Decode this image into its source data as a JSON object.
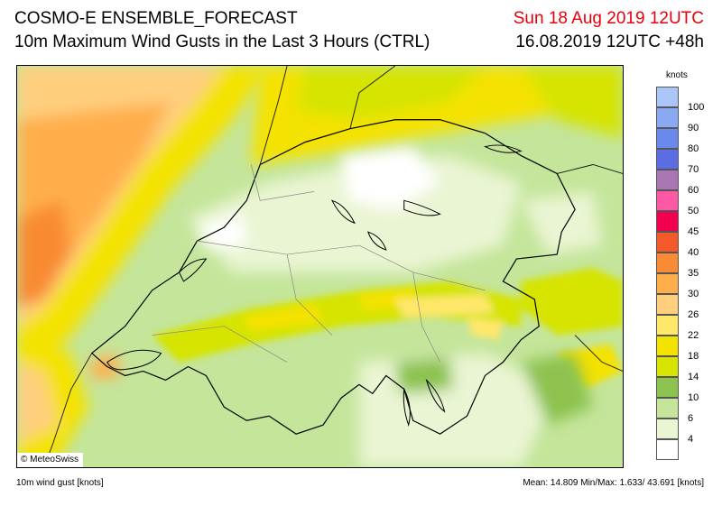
{
  "header": {
    "title_line1": "COSMO-E ENSEMBLE_FORECAST",
    "title_line2": "10m Maximum Wind Gusts in the Last 3 Hours (CTRL)",
    "valid_time": "Sun 18 Aug 2019 12UTC",
    "init_time": "16.08.2019 12UTC +48h"
  },
  "map": {
    "copyright": "© MeteoSwiss"
  },
  "legend": {
    "unit": "knots",
    "colors": [
      "#ffffff",
      "#eaf5d3",
      "#c4e59a",
      "#8cc24e",
      "#d6e400",
      "#f4e200",
      "#ffe76a",
      "#ffcf7e",
      "#ffae4b",
      "#f88b33",
      "#f45a29",
      "#f2004f",
      "#ff59a6",
      "#a776b3",
      "#5a6de5",
      "#6b89ec",
      "#89a9f2",
      "#aac5f8"
    ],
    "ticks": [
      "4",
      "6",
      "10",
      "14",
      "18",
      "22",
      "26",
      "30",
      "35",
      "40",
      "45",
      "50",
      "60",
      "70",
      "80",
      "90",
      "100"
    ]
  },
  "footer": {
    "variable_label": "10m wind gust [knots]",
    "stats": "Mean:  14.809 Min/Max:   1.633/  43.691 [knots]"
  }
}
